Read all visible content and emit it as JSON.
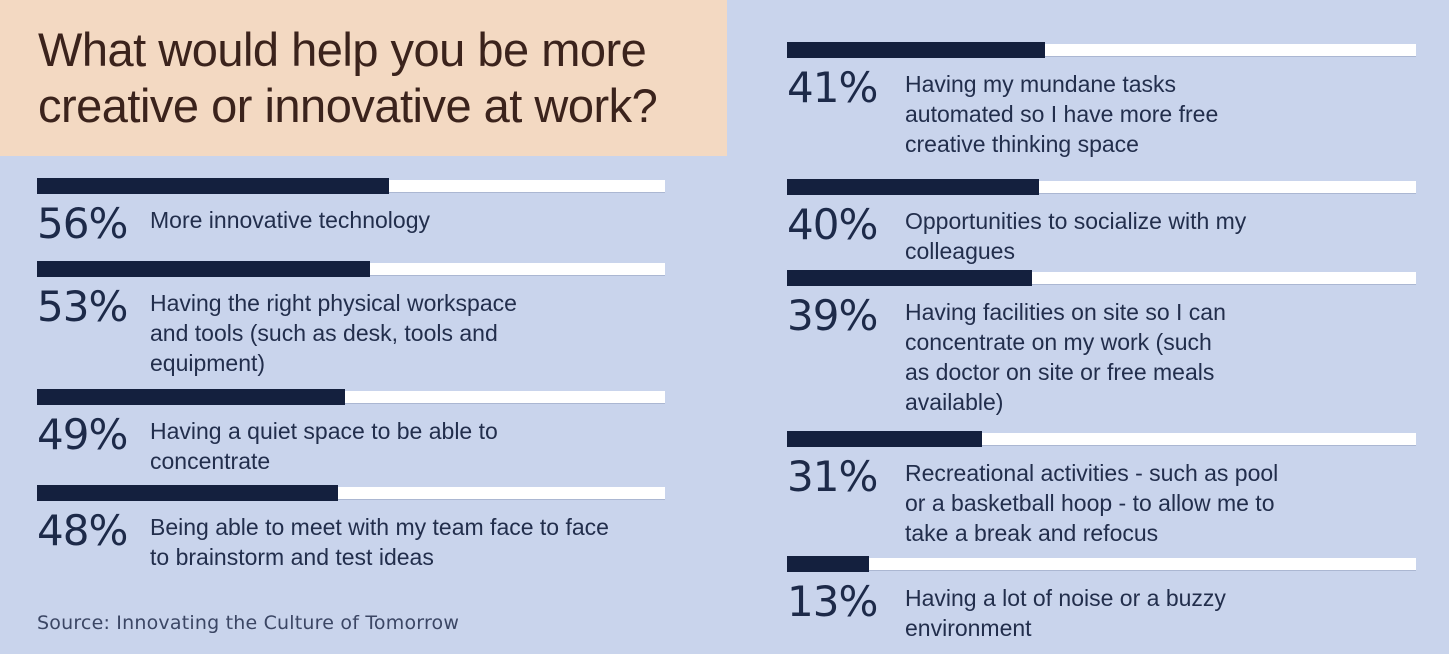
{
  "header": {
    "title": "What would help you be more\ncreative or innovative at work?"
  },
  "footer": {
    "source": "Source: Innovating the Culture of Tomorrow"
  },
  "colors": {
    "background": "#c9d4ec",
    "title_background": "#f3d9c2",
    "title_text": "#3b231c",
    "bar_fill": "#14203e",
    "bar_track": "#ffffff",
    "percent_text": "#1d2a49",
    "description_text": "#222e4c",
    "source_text": "#3b4664"
  },
  "columns": {
    "left": {
      "items": [
        {
          "percent_label": "56%",
          "value": 56,
          "description": "More innovative technology"
        },
        {
          "percent_label": "53%",
          "value": 53,
          "description": "Having the right physical workspace\nand tools (such as desk, tools and\nequipment)"
        },
        {
          "percent_label": "49%",
          "value": 49,
          "description": "Having a quiet space to be able to\nconcentrate"
        },
        {
          "percent_label": "48%",
          "value": 48,
          "description": "Being able to meet with my team face to face\nto brainstorm and test ideas"
        }
      ]
    },
    "right": {
      "items": [
        {
          "percent_label": "41%",
          "value": 41,
          "description": "Having my mundane tasks\nautomated so I have more free\ncreative thinking space"
        },
        {
          "percent_label": "40%",
          "value": 40,
          "description": "Opportunities to socialize with my\ncolleagues"
        },
        {
          "percent_label": "39%",
          "value": 39,
          "description": "Having facilities on site so I can\nconcentrate on my work (such\nas doctor on site or free meals\navailable)"
        },
        {
          "percent_label": "31%",
          "value": 31,
          "description": "Recreational activities - such as pool\nor a basketball hoop - to allow me to\ntake a break and refocus"
        },
        {
          "percent_label": "13%",
          "value": 13,
          "description": "Having a lot of noise or a buzzy\nenvironment"
        }
      ]
    }
  },
  "chart_data": {
    "type": "bar",
    "orientation": "horizontal",
    "title": "What would help you be more creative or innovative at work?",
    "source": "Source: Innovating the Culture of Tomorrow",
    "unit": "%",
    "xlim": [
      0,
      100
    ],
    "grid": false,
    "legend": "none",
    "categories": [
      "More innovative technology",
      "Having the right physical workspace and tools (such as desk, tools and equipment)",
      "Having a quiet space to be able to concentrate",
      "Being able to meet with my team face to face to brainstorm and test ideas",
      "Having my mundane tasks automated so I have more free creative thinking space",
      "Opportunities to socialize with my colleagues",
      "Having facilities on site so I can concentrate on my work (such as doctor on site or free meals available)",
      "Recreational activities - such as pool or a basketball hoop - to allow me to take a break and refocus",
      "Having a lot of noise or a buzzy environment"
    ],
    "values": [
      56,
      53,
      49,
      48,
      41,
      40,
      39,
      31,
      13
    ]
  }
}
